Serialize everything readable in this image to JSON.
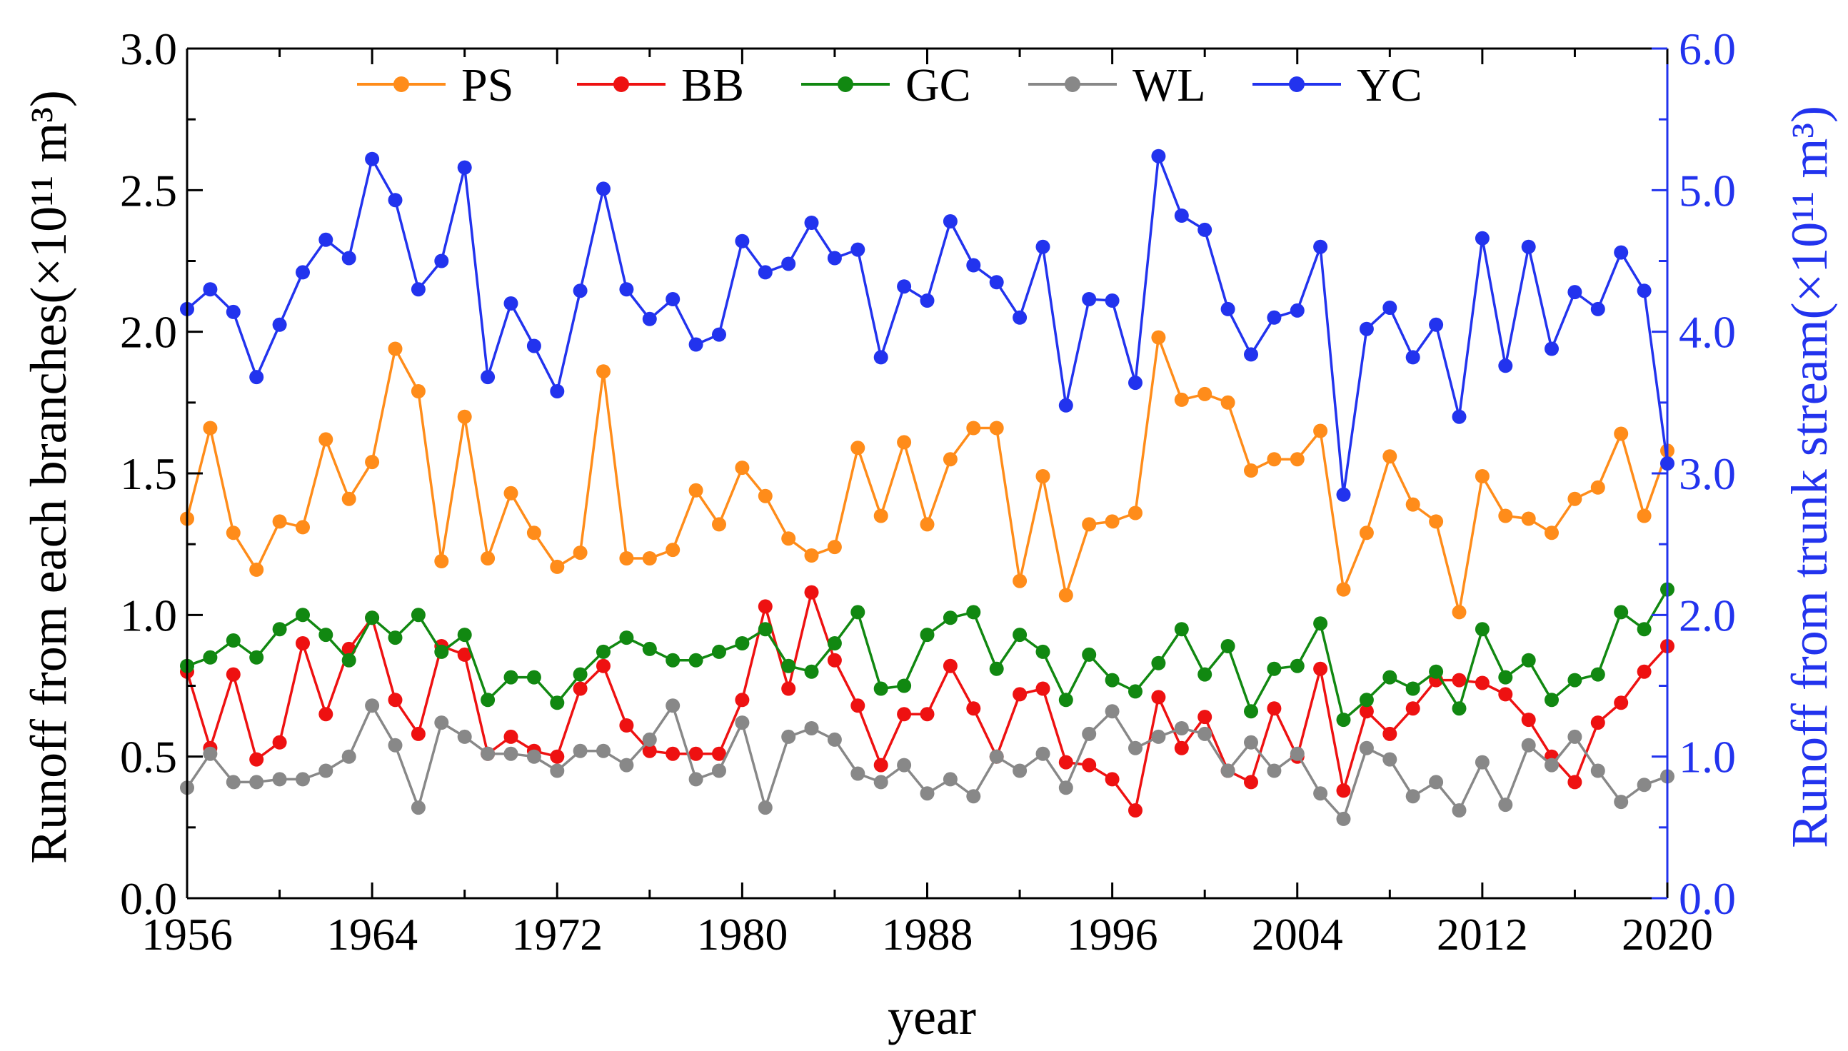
{
  "chart_data": {
    "type": "line",
    "xlabel": "year",
    "ylabel_left": "Runoff from each branches(×10¹¹ m³)",
    "ylabel_right": "Runoff from trunk stream(×10¹¹ m³)",
    "xlim": [
      1956,
      2020
    ],
    "ylim_left": [
      0,
      3
    ],
    "ylim_right": [
      0,
      6
    ],
    "x_ticks": [
      "1956",
      "1964",
      "1972",
      "1980",
      "1988",
      "1996",
      "2004",
      "2012",
      "2020"
    ],
    "y_ticks_left": [
      "0.0",
      "0.5",
      "1.0",
      "1.5",
      "2.0",
      "2.5",
      "3.0"
    ],
    "y_ticks_right": [
      "0.0",
      "1.0",
      "2.0",
      "3.0",
      "4.0",
      "5.0",
      "6.0"
    ],
    "legend_position": "top",
    "colors": {
      "PS": "#ff8c1a",
      "BB": "#ee1111",
      "GC": "#118811",
      "WL": "#888888",
      "YC": "#2233ee",
      "right_axis": "#2233ee"
    },
    "x": [
      1956,
      1957,
      1958,
      1959,
      1960,
      1961,
      1962,
      1963,
      1964,
      1965,
      1966,
      1967,
      1968,
      1969,
      1970,
      1971,
      1972,
      1973,
      1974,
      1975,
      1976,
      1977,
      1978,
      1979,
      1980,
      1981,
      1982,
      1983,
      1984,
      1985,
      1986,
      1987,
      1988,
      1989,
      1990,
      1991,
      1992,
      1993,
      1994,
      1995,
      1996,
      1997,
      1998,
      1999,
      2000,
      2001,
      2002,
      2003,
      2004,
      2005,
      2006,
      2007,
      2008,
      2009,
      2010,
      2011,
      2012,
      2013,
      2014,
      2015,
      2016,
      2017,
      2018,
      2019,
      2020
    ],
    "series": [
      {
        "name": "PS",
        "axis": "left",
        "values": [
          1.34,
          1.66,
          1.29,
          1.16,
          1.33,
          1.31,
          1.62,
          1.41,
          1.54,
          1.94,
          1.79,
          1.19,
          1.7,
          1.2,
          1.43,
          1.29,
          1.17,
          1.22,
          1.86,
          1.2,
          1.2,
          1.23,
          1.44,
          1.32,
          1.52,
          1.42,
          1.27,
          1.21,
          1.24,
          1.59,
          1.35,
          1.61,
          1.32,
          1.55,
          1.66,
          1.66,
          1.12,
          1.49,
          1.07,
          1.32,
          1.33,
          1.36,
          1.98,
          1.76,
          1.78,
          1.75,
          1.51,
          1.55,
          1.55,
          1.65,
          1.09,
          1.29,
          1.56,
          1.39,
          1.33,
          1.01,
          1.49,
          1.35,
          1.34,
          1.29,
          1.41,
          1.45,
          1.64,
          1.35,
          1.58
        ]
      },
      {
        "name": "BB",
        "axis": "left",
        "values": [
          0.8,
          0.53,
          0.79,
          0.49,
          0.55,
          0.9,
          0.65,
          0.88,
          0.99,
          0.7,
          0.58,
          0.89,
          0.86,
          0.51,
          0.57,
          0.52,
          0.5,
          0.74,
          0.82,
          0.61,
          0.52,
          0.51,
          0.51,
          0.51,
          0.7,
          1.03,
          0.74,
          1.08,
          0.84,
          0.68,
          0.47,
          0.65,
          0.65,
          0.82,
          0.67,
          0.5,
          0.72,
          0.74,
          0.48,
          0.47,
          0.42,
          0.31,
          0.71,
          0.53,
          0.64,
          0.45,
          0.41,
          0.67,
          0.5,
          0.81,
          0.38,
          0.66,
          0.58,
          0.67,
          0.77,
          0.77,
          0.76,
          0.72,
          0.63,
          0.5,
          0.41,
          0.62,
          0.69,
          0.8,
          0.89
        ]
      },
      {
        "name": "GC",
        "axis": "left",
        "values": [
          0.82,
          0.85,
          0.91,
          0.85,
          0.95,
          1.0,
          0.93,
          0.84,
          0.99,
          0.92,
          1.0,
          0.87,
          0.93,
          0.7,
          0.78,
          0.78,
          0.69,
          0.79,
          0.87,
          0.92,
          0.88,
          0.84,
          0.84,
          0.87,
          0.9,
          0.95,
          0.82,
          0.8,
          0.9,
          1.01,
          0.74,
          0.75,
          0.93,
          0.99,
          1.01,
          0.81,
          0.93,
          0.87,
          0.7,
          0.86,
          0.77,
          0.73,
          0.83,
          0.95,
          0.79,
          0.89,
          0.66,
          0.81,
          0.82,
          0.97,
          0.63,
          0.7,
          0.78,
          0.74,
          0.8,
          0.67,
          0.95,
          0.78,
          0.84,
          0.7,
          0.77,
          0.79,
          1.01,
          0.95,
          1.09
        ]
      },
      {
        "name": "WL",
        "axis": "left",
        "values": [
          0.39,
          0.51,
          0.41,
          0.41,
          0.42,
          0.42,
          0.45,
          0.5,
          0.68,
          0.54,
          0.32,
          0.62,
          0.57,
          0.51,
          0.51,
          0.5,
          0.45,
          0.52,
          0.52,
          0.47,
          0.56,
          0.68,
          0.42,
          0.45,
          0.62,
          0.32,
          0.57,
          0.6,
          0.56,
          0.44,
          0.41,
          0.47,
          0.37,
          0.42,
          0.36,
          0.5,
          0.45,
          0.51,
          0.39,
          0.58,
          0.66,
          0.53,
          0.57,
          0.6,
          0.58,
          0.45,
          0.55,
          0.45,
          0.51,
          0.37,
          0.28,
          0.53,
          0.49,
          0.36,
          0.41,
          0.31,
          0.48,
          0.33,
          0.54,
          0.47,
          0.57,
          0.45,
          0.34,
          0.4,
          0.43
        ]
      },
      {
        "name": "YC",
        "axis": "right",
        "values": [
          4.16,
          4.3,
          4.14,
          3.68,
          4.05,
          4.42,
          4.65,
          4.52,
          5.22,
          4.93,
          4.3,
          4.5,
          5.16,
          3.68,
          4.2,
          3.9,
          3.58,
          4.29,
          5.01,
          4.3,
          4.09,
          4.23,
          3.91,
          3.98,
          4.64,
          4.42,
          4.48,
          4.77,
          4.52,
          4.58,
          3.82,
          4.32,
          4.22,
          4.78,
          4.47,
          4.35,
          4.1,
          4.6,
          3.48,
          4.23,
          4.22,
          3.64,
          5.24,
          4.82,
          4.72,
          4.16,
          3.84,
          4.1,
          4.15,
          4.6,
          2.85,
          4.02,
          4.17,
          3.82,
          4.05,
          3.4,
          4.66,
          3.76,
          4.6,
          3.88,
          4.28,
          4.16,
          4.56,
          4.29,
          3.07
        ]
      }
    ]
  }
}
